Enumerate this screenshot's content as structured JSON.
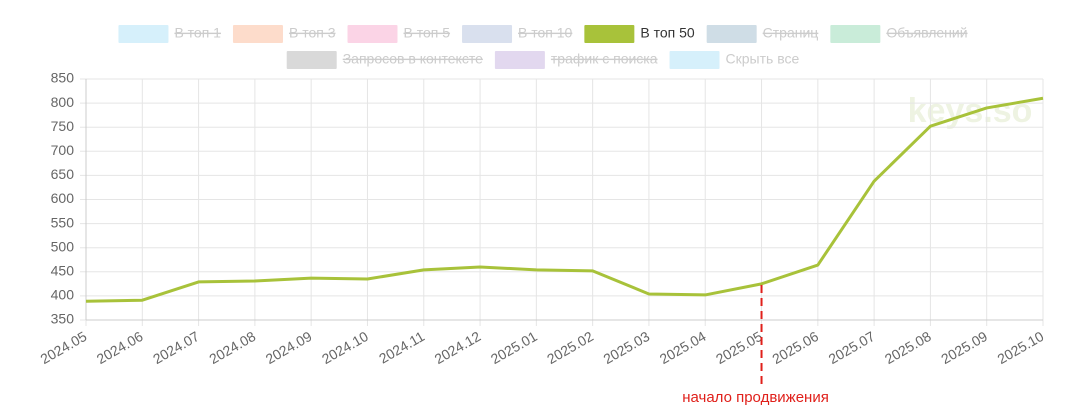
{
  "chart_data": {
    "type": "line",
    "categories": [
      "2024.05",
      "2024.06",
      "2024.07",
      "2024.08",
      "2024.09",
      "2024.10",
      "2024.11",
      "2024.12",
      "2025.01",
      "2025.02",
      "2025.03",
      "2025.04",
      "2025.05",
      "2025.06",
      "2025.07",
      "2025.08",
      "2025.09",
      "2025.10"
    ],
    "series": [
      {
        "name": "В топ 1",
        "color": "#d6f0fb",
        "hidden": true
      },
      {
        "name": "В топ 3",
        "color": "#fddccb",
        "hidden": true
      },
      {
        "name": "В топ 5",
        "color": "#fbd4e6",
        "hidden": true
      },
      {
        "name": "В топ 10",
        "color": "#d9e0ee",
        "hidden": true
      },
      {
        "name": "В топ 50",
        "color": "#a8c23a",
        "hidden": false,
        "values": [
          389,
          391,
          429,
          431,
          437,
          435,
          454,
          460,
          454,
          452,
          404,
          402,
          425,
          464,
          638,
          752,
          790,
          810
        ]
      },
      {
        "name": "Страниц",
        "color": "#cfdde6",
        "hidden": true
      },
      {
        "name": "Объявлений",
        "color": "#c9ecd9",
        "hidden": true
      },
      {
        "name": "Запросов в контексте",
        "color": "#d9d9d9",
        "hidden": true
      },
      {
        "name": "трафик с поиска",
        "color": "#e2d8ef",
        "hidden": true
      }
    ],
    "hide_all_button": {
      "label": "Скрыть все",
      "color": "#d6f0fb"
    },
    "ylim": [
      350,
      850
    ],
    "yticks": [
      350,
      400,
      450,
      500,
      550,
      600,
      650,
      700,
      750,
      800,
      850
    ],
    "grid": true,
    "annotation": {
      "text": "начало продвижения",
      "x": "2025.05",
      "color": "#e0201b"
    },
    "watermark": "keys.so"
  }
}
